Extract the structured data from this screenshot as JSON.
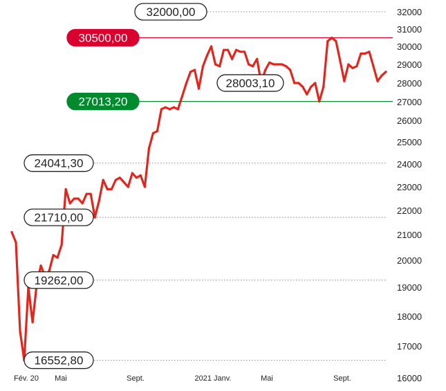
{
  "chart_data": {
    "type": "line",
    "title": "",
    "xlabel": "",
    "ylabel": "",
    "ylim": [
      16000,
      32000
    ],
    "y_ticks": [
      "32000",
      "31000",
      "30000",
      "29000",
      "28000",
      "27000",
      "26000",
      "25000",
      "24000",
      "23000",
      "22000",
      "21000",
      "20000",
      "19000",
      "18000",
      "17000",
      "16000"
    ],
    "x_ticks": [
      "Fév. 20",
      "Mai",
      "Sept.",
      "2021 Janv.",
      "Mai",
      "Sept."
    ],
    "grid": "dotted horizontal at labeled levels",
    "series": [
      {
        "color": "#e2261d",
        "values": [
          21100,
          20700,
          17500,
          16552.8,
          19000,
          17800,
          19100,
          19800,
          19400,
          19600,
          20200,
          20100,
          20600,
          22900,
          22300,
          22500,
          22500,
          22300,
          22700,
          22700,
          21710,
          22400,
          23300,
          22900,
          22900,
          23300,
          23400,
          23200,
          23000,
          23600,
          23400,
          23500,
          23000,
          24700,
          25400,
          25500,
          26600,
          26700,
          26600,
          26700,
          26600,
          27300,
          28000,
          28600,
          28700,
          27700,
          28900,
          29500,
          30000,
          29000,
          28900,
          29800,
          29800,
          29300,
          29800,
          29700,
          29700,
          29000,
          28900,
          29300,
          28003.1,
          28700,
          29100,
          29000,
          29000,
          29000,
          28900,
          28700,
          28000,
          28000,
          27800,
          27400,
          27800,
          28000,
          27013.2,
          27800,
          30300,
          30500,
          30300,
          29200,
          28100,
          29000,
          28800,
          28900,
          29600,
          29600,
          29700,
          28900,
          28100,
          28400,
          28600
        ]
      }
    ],
    "annotations": [
      {
        "label": "32000,00",
        "value": 32000,
        "style": "outline"
      },
      {
        "label": "30500,00",
        "value": 30500,
        "style": "red"
      },
      {
        "label": "28003,10",
        "value": 28003.1,
        "style": "outline"
      },
      {
        "label": "27013,20",
        "value": 27013.2,
        "style": "green"
      },
      {
        "label": "24041,30",
        "value": 24041.3,
        "style": "outline"
      },
      {
        "label": "21710,00",
        "value": 21710,
        "style": "outline"
      },
      {
        "label": "19262,00",
        "value": 19262,
        "style": "outline"
      },
      {
        "label": "16552,80",
        "value": 16552.8,
        "style": "outline"
      }
    ],
    "colors": {
      "line": "#e2261d",
      "resistance": "#d9002f",
      "support": "#008a2e",
      "grid": "#888888",
      "text": "#222222"
    }
  }
}
